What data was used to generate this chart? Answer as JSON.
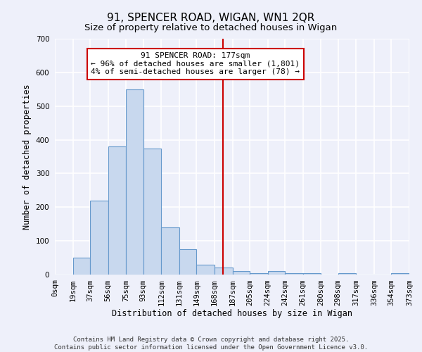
{
  "title": "91, SPENCER ROAD, WIGAN, WN1 2QR",
  "subtitle": "Size of property relative to detached houses in Wigan",
  "xlabel": "Distribution of detached houses by size in Wigan",
  "ylabel": "Number of detached properties",
  "bar_color": "#c8d8ee",
  "bar_edge_color": "#6699cc",
  "background_color": "#eef0fa",
  "grid_color": "#ffffff",
  "bin_edges": [
    0,
    19,
    37,
    56,
    75,
    93,
    112,
    131,
    149,
    168,
    187,
    205,
    224,
    242,
    261,
    280,
    298,
    317,
    336,
    354,
    373
  ],
  "bin_labels": [
    "0sqm",
    "19sqm",
    "37sqm",
    "56sqm",
    "75sqm",
    "93sqm",
    "112sqm",
    "131sqm",
    "149sqm",
    "168sqm",
    "187sqm",
    "205sqm",
    "224sqm",
    "242sqm",
    "261sqm",
    "280sqm",
    "298sqm",
    "317sqm",
    "336sqm",
    "354sqm",
    "373sqm"
  ],
  "counts": [
    0,
    50,
    220,
    380,
    550,
    375,
    140,
    75,
    30,
    20,
    10,
    5,
    10,
    5,
    5,
    0,
    5,
    0,
    0,
    5
  ],
  "ylim": [
    0,
    700
  ],
  "yticks": [
    0,
    100,
    200,
    300,
    400,
    500,
    600,
    700
  ],
  "property_line_x": 177,
  "property_line_color": "#cc0000",
  "annotation_text": "91 SPENCER ROAD: 177sqm\n← 96% of detached houses are smaller (1,801)\n4% of semi-detached houses are larger (78) →",
  "annotation_box_color": "#cc0000",
  "footer_line1": "Contains HM Land Registry data © Crown copyright and database right 2025.",
  "footer_line2": "Contains public sector information licensed under the Open Government Licence v3.0.",
  "title_fontsize": 11,
  "subtitle_fontsize": 9.5,
  "label_fontsize": 8.5,
  "tick_fontsize": 7.5,
  "annotation_fontsize": 8,
  "footer_fontsize": 6.5
}
